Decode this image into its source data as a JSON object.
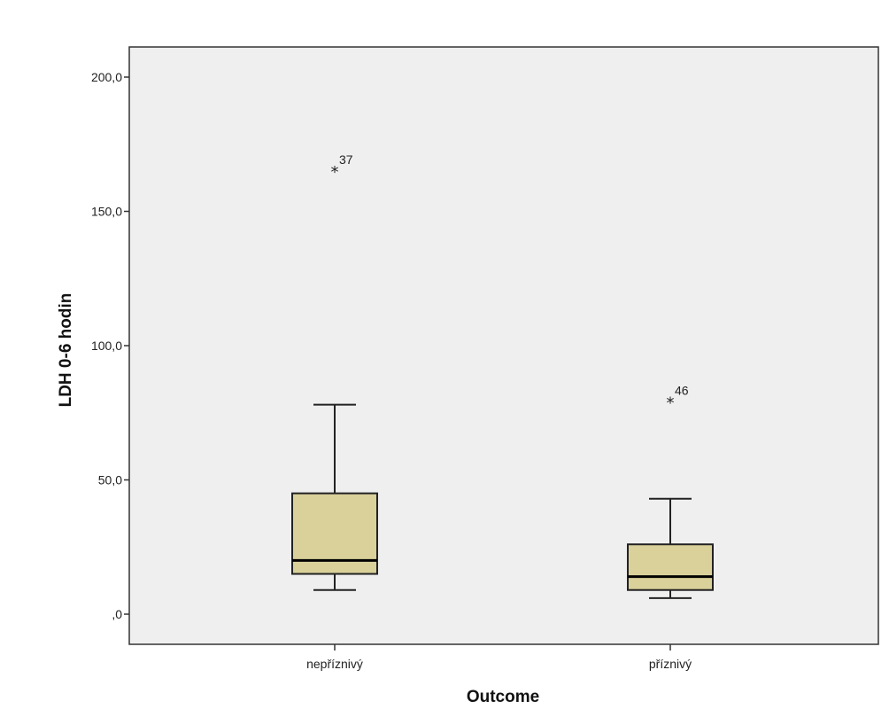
{
  "chart_data": {
    "type": "boxplot",
    "xlabel": "Outcome",
    "ylabel": "LDH 0-6 hodin",
    "ylim": [
      -11,
      211
    ],
    "y_ticks": [
      {
        "value": 0,
        "label": ",0"
      },
      {
        "value": 50,
        "label": "50,0"
      },
      {
        "value": 100,
        "label": "100,0"
      },
      {
        "value": 150,
        "label": "150,0"
      },
      {
        "value": 200,
        "label": "200,0"
      }
    ],
    "categories": [
      "nepříznivý",
      "příznivý"
    ],
    "boxes": [
      {
        "category": "nepříznivý",
        "whisker_low": 9,
        "q1": 15,
        "median": 20,
        "q3": 45,
        "whisker_high": 78,
        "outliers": [
          {
            "value": 165,
            "label": "37",
            "marker": "*"
          }
        ]
      },
      {
        "category": "příznivý",
        "whisker_low": 6,
        "q1": 9,
        "median": 14,
        "q3": 26,
        "whisker_high": 43,
        "outliers": [
          {
            "value": 79,
            "label": "46",
            "marker": "*"
          }
        ]
      }
    ],
    "colors": {
      "box_fill": "#d9d09a",
      "plot_bg": "#efefef",
      "line": "#222222"
    },
    "grid": false
  }
}
